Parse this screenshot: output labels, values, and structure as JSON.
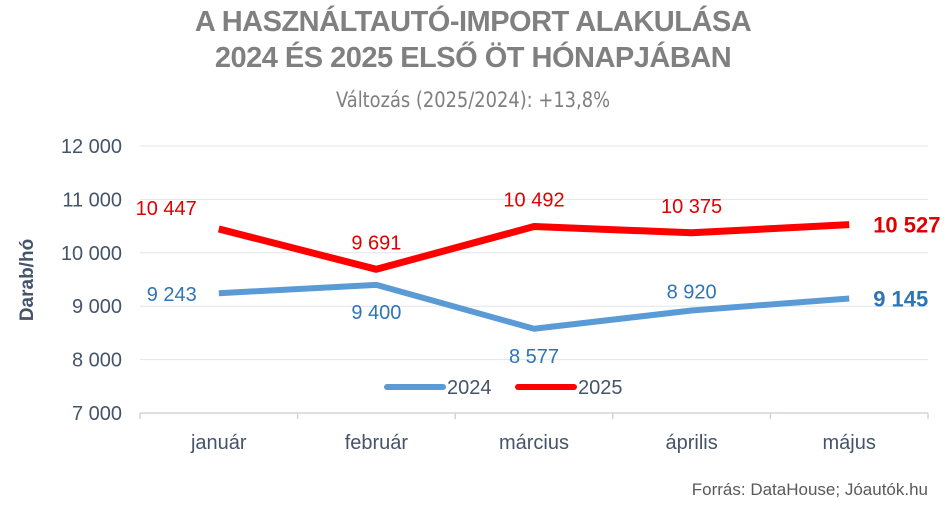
{
  "chart_data": {
    "type": "line",
    "title": "A HASZNÁLTAUTÓ-IMPORT ALAKULÁSA",
    "title_line2": "2024 ÉS 2025 ELSŐ ÖT HÓNAPJÁBAN",
    "subtitle": "Változás (2025/2024): +13,8%",
    "ylabel": "Darab/hó",
    "xlabel": "",
    "ylim": [
      7000,
      12000
    ],
    "yticks": [
      7000,
      8000,
      9000,
      10000,
      11000,
      12000
    ],
    "ytick_labels": [
      "7 000",
      "8 000",
      "9 000",
      "10 000",
      "11 000",
      "12 000"
    ],
    "grid": true,
    "legend_position": "bottom-center",
    "categories": [
      "január",
      "február",
      "március",
      "április",
      "május"
    ],
    "series": [
      {
        "name": "2024",
        "color": "#5b9bd5",
        "label_color": "#2e75b6",
        "values": [
          9243,
          9400,
          8577,
          8920,
          9145
        ],
        "labels": [
          "9 243",
          "9 400",
          "8 577",
          "8 920",
          "9 145"
        ]
      },
      {
        "name": "2025",
        "color": "#ff0000",
        "label_color": "#e00000",
        "values": [
          10447,
          9691,
          10492,
          10375,
          10527
        ],
        "labels": [
          "10 447",
          "9 691",
          "10 492",
          "10 375",
          "10 527"
        ]
      }
    ],
    "source": "Forrás: DataHouse; Jóautók.hu"
  }
}
